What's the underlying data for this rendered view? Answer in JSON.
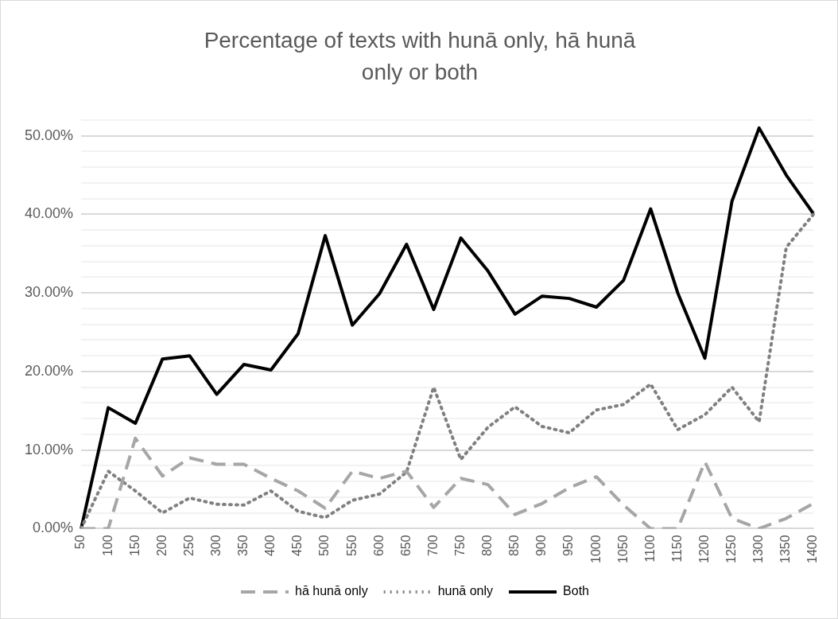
{
  "chart_data": {
    "type": "line",
    "title": "Percentage of texts with hunā only, hā hunā only or both",
    "categories": [
      "50",
      "100",
      "150",
      "200",
      "250",
      "300",
      "350",
      "400",
      "450",
      "500",
      "550",
      "600",
      "650",
      "700",
      "750",
      "800",
      "850",
      "900",
      "950",
      "1000",
      "1050",
      "1100",
      "1150",
      "1200",
      "1250",
      "1300",
      "1350",
      "1400"
    ],
    "series": [
      {
        "name": "hā hunā only",
        "color": "#a6a6a6",
        "line_style": "dashed",
        "values": [
          0,
          0,
          11.5,
          6.7,
          9,
          8.2,
          8.2,
          6.4,
          4.8,
          2.6,
          7.3,
          6.4,
          7.3,
          2.7,
          6.4,
          5.6,
          1.8,
          3.2,
          5.2,
          6.6,
          3,
          0,
          0,
          8.5,
          1.3,
          0,
          1.3,
          3.2
        ]
      },
      {
        "name": "hunā only",
        "color": "#808080",
        "line_style": "dotted",
        "values": [
          0,
          7.3,
          4.8,
          2,
          3.9,
          3.1,
          3,
          4.8,
          2.2,
          1.4,
          3.6,
          4.4,
          7.2,
          18,
          8.8,
          12.9,
          15.5,
          13,
          12.2,
          15.1,
          15.8,
          18.4,
          12.6,
          14.5,
          18,
          13.6,
          35.8,
          40
        ]
      },
      {
        "name": "Both",
        "color": "#000000",
        "line_style": "solid",
        "values": [
          0,
          15.4,
          13.4,
          21.6,
          22,
          17.1,
          20.9,
          20.2,
          24.8,
          37.3,
          25.9,
          29.9,
          36.2,
          27.9,
          37,
          32.8,
          27.3,
          29.6,
          29.3,
          28.2,
          31.6,
          40.7,
          30,
          21.7,
          41.7,
          51,
          45,
          40.1
        ]
      }
    ],
    "ylim": [
      0,
      52
    ],
    "yticks": [
      {
        "value": 0,
        "label": "0.00%"
      },
      {
        "value": 2,
        "label": null
      },
      {
        "value": 4,
        "label": null
      },
      {
        "value": 6,
        "label": null
      },
      {
        "value": 8,
        "label": null
      },
      {
        "value": 10,
        "label": "10.00%"
      },
      {
        "value": 12,
        "label": null
      },
      {
        "value": 14,
        "label": null
      },
      {
        "value": 16,
        "label": null
      },
      {
        "value": 18,
        "label": null
      },
      {
        "value": 20,
        "label": "20.00%"
      },
      {
        "value": 22,
        "label": null
      },
      {
        "value": 24,
        "label": null
      },
      {
        "value": 26,
        "label": null
      },
      {
        "value": 28,
        "label": null
      },
      {
        "value": 30,
        "label": "30.00%"
      },
      {
        "value": 32,
        "label": null
      },
      {
        "value": 34,
        "label": null
      },
      {
        "value": 36,
        "label": null
      },
      {
        "value": 38,
        "label": null
      },
      {
        "value": 40,
        "label": "40.00%"
      },
      {
        "value": 42,
        "label": null
      },
      {
        "value": 44,
        "label": null
      },
      {
        "value": 46,
        "label": null
      },
      {
        "value": 48,
        "label": null
      },
      {
        "value": 50,
        "label": "50.00%"
      },
      {
        "value": 52,
        "label": null
      }
    ],
    "grid": "y",
    "legend": "bottom",
    "marker": "none"
  }
}
